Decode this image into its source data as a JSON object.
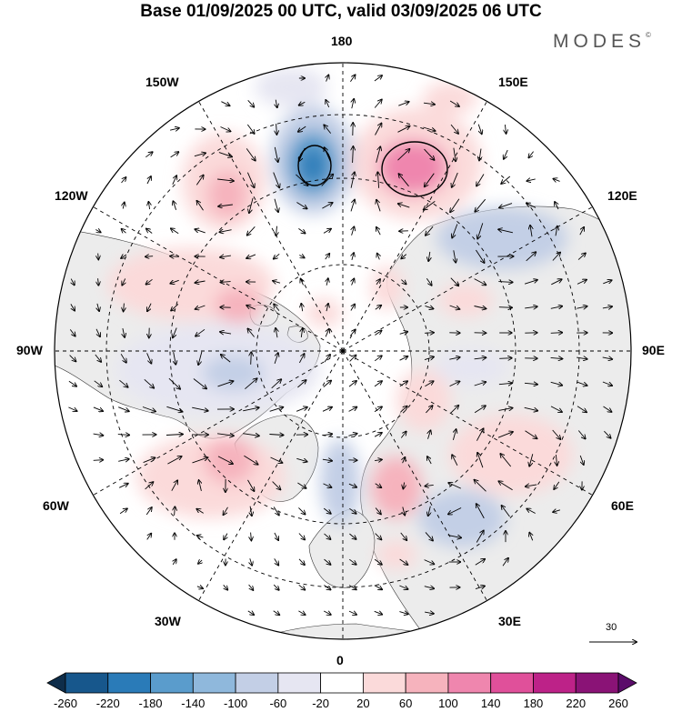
{
  "header": {
    "title": "Base 01/09/2025 00 UTC, valid 03/09/2025 06 UTC",
    "brand": "MODES"
  },
  "map": {
    "projection": "north-polar-stereographic",
    "longitude_labels": {
      "top": "180",
      "bottom": "0",
      "left": "90W",
      "right": "90E",
      "upper_left_1": "150W",
      "upper_left_2": "120W",
      "lower_left_1": "60W",
      "lower_left_2": "30W",
      "upper_right_1": "150E",
      "upper_right_2": "120E",
      "lower_right_1": "60E",
      "lower_right_2": "30E"
    },
    "wind_reference_vector": "30",
    "anomaly_cells": [
      {
        "name": "north-pacific-low",
        "sign": "negative",
        "value": -180
      },
      {
        "name": "east-siberia-high",
        "sign": "positive",
        "value": 140
      },
      {
        "name": "alaska-high",
        "sign": "positive",
        "value": 60
      },
      {
        "name": "canada-high",
        "sign": "positive",
        "value": 60
      },
      {
        "name": "hudson-low",
        "sign": "negative",
        "value": -60
      },
      {
        "name": "greenland-high",
        "sign": "positive",
        "value": 60
      },
      {
        "name": "europe-high",
        "sign": "positive",
        "value": 60
      },
      {
        "name": "russia-high",
        "sign": "positive",
        "value": 60
      }
    ]
  },
  "colorbar": {
    "ticks": [
      "-260",
      "-220",
      "-180",
      "-140",
      "-100",
      "-60",
      "-20",
      "20",
      "60",
      "100",
      "140",
      "180",
      "220",
      "260"
    ],
    "colors": [
      "#0e2d4a",
      "#17578c",
      "#2a7bb8",
      "#5a9ccc",
      "#8fb8dc",
      "#c3cfe6",
      "#e6e6f2",
      "#ffffff",
      "#fbdada",
      "#f6b3bd",
      "#ef86ae",
      "#e0509a",
      "#bd2288",
      "#8a1376",
      "#5b0c6a"
    ]
  }
}
